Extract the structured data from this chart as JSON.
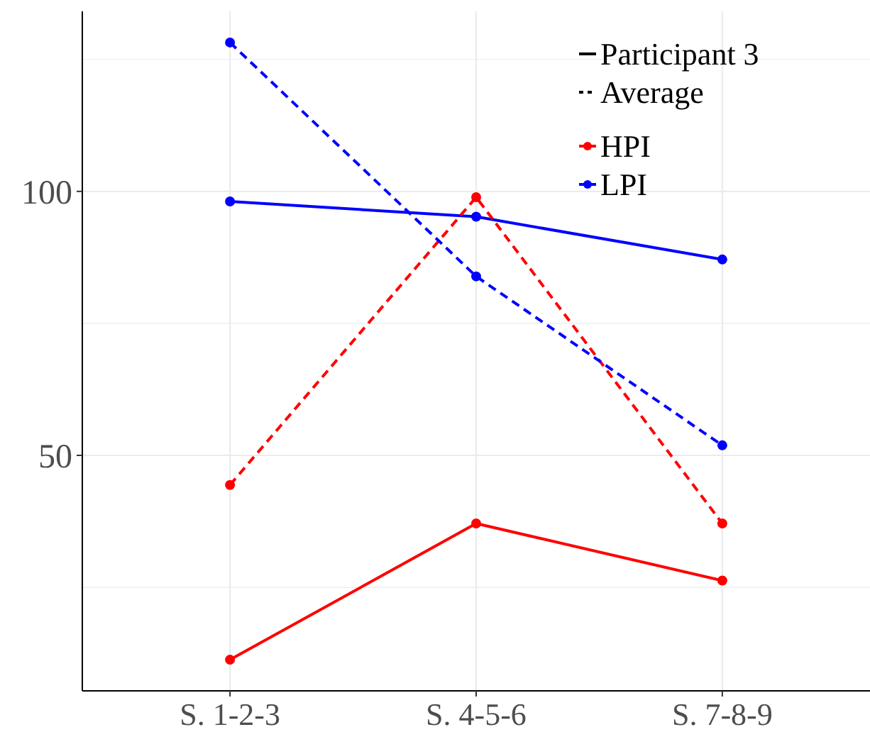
{
  "chart_data": {
    "type": "line",
    "categories": [
      "S. 1-2-3",
      "S. 4-5-6",
      "S. 7-8-9"
    ],
    "series": [
      {
        "name": "HPI",
        "color": "#ff0000",
        "values": [
          11.3,
          37.1,
          26.3
        ],
        "line_style": "solid"
      },
      {
        "name": "LPI",
        "color": "#0000ff",
        "values": [
          98.1,
          95.2,
          87.1
        ],
        "line_style": "solid"
      },
      {
        "color": "#ff0000",
        "values": [
          44.4,
          98.9,
          37.1
        ],
        "line_style": "dashed"
      },
      {
        "color": "#0000ff",
        "values": [
          128.2,
          83.9,
          51.9
        ],
        "line_style": "dashed"
      }
    ],
    "annotations": [
      "Participant 3",
      "Average"
    ],
    "ylim": [
      5.4,
      134.1
    ],
    "yticks": [
      {
        "value": 25,
        "label": null
      },
      50,
      {
        "value": 75,
        "label": null
      },
      100,
      {
        "value": 125,
        "label": null
      }
    ],
    "grid": true,
    "legend": "top right",
    "marker": "circle"
  }
}
